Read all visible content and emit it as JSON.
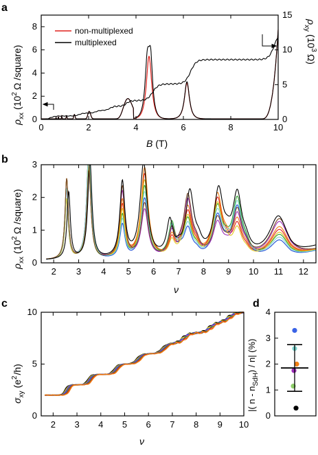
{
  "chart_data": [
    {
      "panel": "a",
      "type": "line",
      "xlabel_symbol": "B",
      "xlabel_unit": "(T)",
      "ylabel_left_sym": "ρ",
      "ylabel_left_sub": "xx",
      "ylabel_left_rest": "(10",
      "ylabel_left_exp": "2",
      "ylabel_left_end": "Ω /square)",
      "ylabel_right_sym": "ρ",
      "ylabel_right_sub": "xy",
      "ylabel_right_rest": "(10",
      "ylabel_right_exp": "3",
      "ylabel_right_end": "Ω)",
      "xlim": [
        0,
        10
      ],
      "ylim_left": [
        0,
        9
      ],
      "ylim_right": [
        0,
        15
      ],
      "x_ticks": [
        "0",
        "2",
        "4",
        "6",
        "8",
        "10"
      ],
      "y_ticks_left": [
        "0",
        "2",
        "4",
        "6",
        "8"
      ],
      "y_ticks_right": [
        "0",
        "5",
        "10",
        "15"
      ],
      "legend": [
        {
          "name": "non-multiplexed",
          "color": "#e0201b"
        },
        {
          "name": "multiplexed",
          "color": "#000000"
        }
      ],
      "rho_xx_peaks_multiplexed": [
        [
          1.6,
          0.75
        ],
        [
          1.8,
          0.85
        ],
        [
          2.05,
          1.05
        ],
        [
          2.3,
          1.2
        ],
        [
          2.6,
          1.45
        ],
        [
          2.95,
          1.65
        ],
        [
          3.45,
          2.4
        ],
        [
          4.45,
          4.8
        ],
        [
          4.6,
          5.1
        ],
        [
          6.15,
          3.2
        ]
      ],
      "rho_xx_peaks_non_multiplexed": [
        [
          4.55,
          5.5
        ],
        [
          6.15,
          3.1
        ]
      ],
      "rho_xy_plateaus": [
        [
          1.0,
          0.9
        ],
        [
          2.8,
          1.8
        ],
        [
          3.6,
          2.7
        ],
        [
          4.8,
          5.1
        ],
        [
          6.4,
          8.6
        ],
        [
          10.0,
          12.9
        ]
      ]
    },
    {
      "panel": "b",
      "type": "line",
      "xlabel": "ν",
      "ylabel_sym": "ρ",
      "ylabel_sub": "xx",
      "ylabel_rest": "(10",
      "ylabel_exp": "2",
      "ylabel_end": "Ω /square)",
      "xlim": [
        1.5,
        12.5
      ],
      "ylim": [
        0,
        3
      ],
      "x_ticks": [
        "2",
        "3",
        "4",
        "5",
        "6",
        "7",
        "8",
        "9",
        "10",
        "11",
        "12"
      ],
      "y_ticks": [
        "0",
        "1",
        "2",
        "3"
      ],
      "series_colors": [
        "#000000",
        "#e0201b",
        "#2a9d2a",
        "#1f4fd6",
        "#9c2fb8",
        "#f07e12",
        "#e3c51c",
        "#7fd6d0",
        "#7a4a2a"
      ],
      "peaks_nu": [
        2.6,
        3.45,
        4.75,
        5.6,
        6.65,
        7.45,
        8.6,
        9.35,
        11.0
      ],
      "peak_heights_black": [
        2.05,
        3.0,
        2.3,
        2.9,
        1.05,
        1.95,
        1.95,
        1.8,
        1.3
      ]
    },
    {
      "panel": "c",
      "type": "line",
      "xlabel": "ν",
      "ylabel_sym": "σ",
      "ylabel_sub": "xy",
      "ylabel_unit": "(e",
      "ylabel_exp": "2",
      "ylabel_end": "/h)",
      "xlim": [
        1.5,
        10
      ],
      "ylim": [
        0,
        10
      ],
      "x_ticks": [
        "2",
        "3",
        "4",
        "5",
        "6",
        "7",
        "8",
        "9",
        "10"
      ],
      "y_ticks": [
        "0",
        "5",
        "10"
      ],
      "plateaus": [
        2,
        3,
        4,
        5,
        6,
        7,
        8,
        9,
        10
      ],
      "series_colors": [
        "#000000",
        "#e3c51c",
        "#1f4fd6",
        "#9c2fb8",
        "#2a9d2a",
        "#e0201b",
        "#f07e12"
      ]
    },
    {
      "panel": "d",
      "type": "scatter",
      "ylabel": "|( n - n",
      "ylabel_sub": "SdH",
      "ylabel_end": ") / n| (%)",
      "ylim": [
        0,
        4
      ],
      "y_ticks": [
        "0",
        "1",
        "2",
        "3",
        "4"
      ],
      "points": [
        {
          "y": 3.3,
          "color": "#3a63e6"
        },
        {
          "y": 2.6,
          "color": "#7fd6d0"
        },
        {
          "y": 2.0,
          "color": "#f07e12"
        },
        {
          "y": 1.75,
          "color": "#9c2fb8"
        },
        {
          "y": 1.15,
          "color": "#8fd06a"
        },
        {
          "y": 0.3,
          "color": "#000000"
        }
      ],
      "mean": 1.85,
      "error_upper": 2.75,
      "error_lower": 0.95
    }
  ],
  "panel_letters": [
    "a",
    "b",
    "c",
    "d"
  ]
}
